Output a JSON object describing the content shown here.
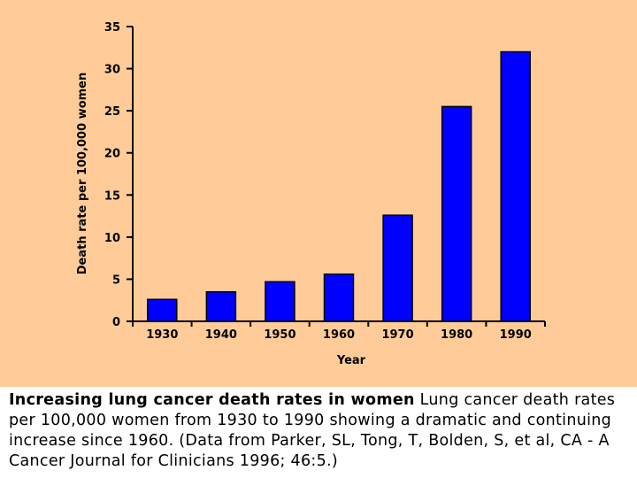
{
  "chart_data": {
    "type": "bar",
    "categories": [
      "1930",
      "1940",
      "1950",
      "1960",
      "1970",
      "1980",
      "1990"
    ],
    "values": [
      2.6,
      3.5,
      4.7,
      5.6,
      12.6,
      25.5,
      32.0
    ],
    "title": "",
    "xlabel": "Year",
    "ylabel": "Death rate per 100,000 women",
    "ylim": [
      0,
      35
    ],
    "yticks": [
      "0",
      "5",
      "10",
      "15",
      "20",
      "25",
      "30",
      "35"
    ],
    "grid": false,
    "legend": "none",
    "bar_color": "#0000FF",
    "background_color": "#FFCC99"
  },
  "caption": {
    "title": "Increasing lung cancer death rates in women",
    "body": "Lung cancer death rates per 100,000 women from 1930 to 1990 showing a dramatic and continuing increase since 1960. (Data from Parker, SL, Tong, T, Bolden, S, et al, CA - A Cancer Journal for Clinicians 1996; 46:5.)"
  }
}
